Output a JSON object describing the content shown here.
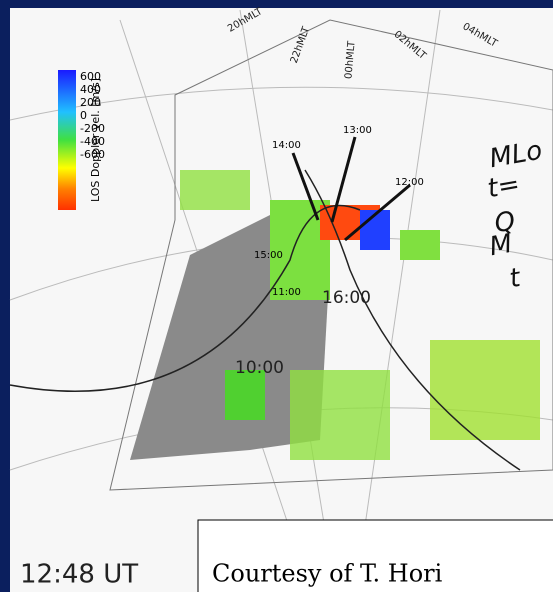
{
  "colorbar": {
    "label": "LOS Doppler vel. [m/s]",
    "ticks": [
      600,
      400,
      200,
      0,
      -200,
      -400,
      -600
    ]
  },
  "mlt_labels": [
    "20hMLT",
    "22hMLT",
    "00hMLT",
    "02hMLT",
    "04hMLT"
  ],
  "time_labels": [
    "14:00",
    "13:00",
    "12:00",
    "15:00",
    "11:00",
    "16:00",
    "10:00"
  ],
  "handwriting": [
    "MLo",
    "t=",
    "Q",
    "M",
    "t"
  ],
  "timestamp": "12:48 UT",
  "credit": "Courtesy of T. Hori"
}
